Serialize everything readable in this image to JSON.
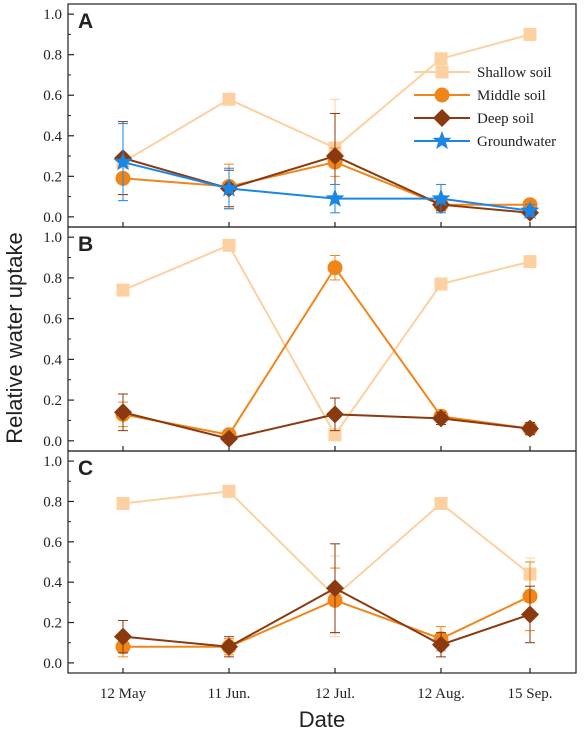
{
  "chart_data": {
    "type": "line",
    "categories": [
      "12 May",
      "11 Jun.",
      "12 Jul.",
      "12 Aug.",
      "15 Sep."
    ],
    "xlabel": "Date",
    "ylabel": "Relative water uptake",
    "ylim": [
      -0.05,
      1.05
    ],
    "yticks": [
      "0.0",
      "0.2",
      "0.4",
      "0.6",
      "0.8",
      "1.0"
    ],
    "grid": false,
    "legend_position": "top-right",
    "colors": {
      "Shallow soil": "#fdd0a2",
      "Middle soil": "#f0861a",
      "Deep soil": "#8b3a0f",
      "Groundwater": "#1a86e6"
    },
    "panels": [
      {
        "label": "A",
        "series": [
          {
            "name": "Shallow soil",
            "marker": "square",
            "values": [
              0.27,
              0.58,
              0.34,
              0.78,
              0.9
            ],
            "errors": [
              0,
              0,
              0.24,
              0,
              0
            ]
          },
          {
            "name": "Middle soil",
            "marker": "circle",
            "values": [
              0.19,
              0.15,
              0.27,
              0.06,
              0.06
            ],
            "errors": [
              0.08,
              0.11,
              0.07,
              0.02,
              0.02
            ]
          },
          {
            "name": "Deep soil",
            "marker": "diamond",
            "values": [
              0.29,
              0.14,
              0.3,
              0.06,
              0.02
            ],
            "errors": [
              0.18,
              0.09,
              0.21,
              0.03,
              0.02
            ]
          },
          {
            "name": "Groundwater",
            "marker": "star",
            "values": [
              0.27,
              0.14,
              0.09,
              0.09,
              0.03
            ],
            "errors": [
              0.19,
              0.1,
              0.07,
              0.07,
              0.03
            ]
          }
        ]
      },
      {
        "label": "B",
        "series": [
          {
            "name": "Shallow soil",
            "marker": "square",
            "values": [
              0.74,
              0.96,
              0.03,
              0.77,
              0.88
            ],
            "errors": [
              0,
              0,
              0,
              0,
              0
            ]
          },
          {
            "name": "Middle soil",
            "marker": "circle",
            "values": [
              0.13,
              0.03,
              0.85,
              0.12,
              0.06
            ],
            "errors": [
              0.06,
              0.02,
              0.06,
              0.03,
              0.03
            ]
          },
          {
            "name": "Deep soil",
            "marker": "diamond",
            "values": [
              0.14,
              0.01,
              0.13,
              0.11,
              0.06
            ],
            "errors": [
              0.09,
              0.01,
              0.08,
              0.03,
              0.03
            ]
          }
        ]
      },
      {
        "label": "C",
        "series": [
          {
            "name": "Shallow soil",
            "marker": "square",
            "values": [
              0.79,
              0.85,
              0.33,
              0.79,
              0.44
            ],
            "errors": [
              0,
              0,
              0.2,
              0,
              0.08
            ]
          },
          {
            "name": "Middle soil",
            "marker": "circle",
            "values": [
              0.08,
              0.08,
              0.31,
              0.12,
              0.33
            ],
            "errors": [
              0.05,
              0.04,
              0.16,
              0.06,
              0.17
            ]
          },
          {
            "name": "Deep soil",
            "marker": "diamond",
            "values": [
              0.13,
              0.08,
              0.37,
              0.09,
              0.24
            ],
            "errors": [
              0.08,
              0.05,
              0.22,
              0.06,
              0.14
            ]
          }
        ]
      }
    ]
  }
}
